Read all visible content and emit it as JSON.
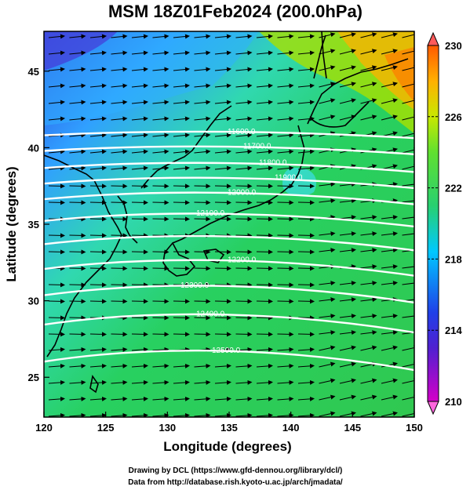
{
  "title": "MSM 18Z01Feb2024 (200.0hPa)",
  "x_axis": {
    "label": "Longitude (degrees)",
    "ticks": [
      "120",
      "125",
      "130",
      "135",
      "140",
      "145",
      "150"
    ],
    "range": [
      120,
      150
    ]
  },
  "y_axis": {
    "label": "Latitude  (degrees)",
    "ticks": [
      "25",
      "30",
      "35",
      "40",
      "45"
    ],
    "range": [
      22.4,
      47.6
    ]
  },
  "colorbar": {
    "ticks": [
      "210",
      "214",
      "218",
      "222",
      "226",
      "230"
    ],
    "range": [
      210,
      230
    ],
    "colors": [
      "#d400c8",
      "#3030e0",
      "#00c8ff",
      "#28d070",
      "#a8e000",
      "#ffb000",
      "#ff6a00"
    ]
  },
  "contours": [
    {
      "label": "11600.0",
      "lat": 40.9
    },
    {
      "label": "11700.0",
      "lat": 39.9
    },
    {
      "label": "11800.0",
      "lat": 38.8
    },
    {
      "label": "11900.0",
      "lat": 37.8
    },
    {
      "label": "12000.0",
      "lat": 36.8
    },
    {
      "label": "12100.0",
      "lat": 35.4
    },
    {
      "label": "",
      "lat": 33.9
    },
    {
      "label": "12200.0",
      "lat": 32.3
    },
    {
      "label": "12300.0",
      "lat": 30.6
    },
    {
      "label": "12400.0",
      "lat": 28.7
    },
    {
      "label": "12500.0",
      "lat": 26.3
    }
  ],
  "footer": {
    "line1": "Drawing by DCL (https://www.gfd-dennou.org/library/dcl/)",
    "line2": "Data from http://database.rish.kyoto-u.ac.jp/arch/jmadata/"
  },
  "colors": {
    "field_green": "#2ed050",
    "field_cyan": "#40e0e0",
    "field_blue": "#3050e0",
    "field_orange": "#ff9a00",
    "contour": "#ffffff",
    "vectors": "#000000",
    "coast": "#000000"
  }
}
